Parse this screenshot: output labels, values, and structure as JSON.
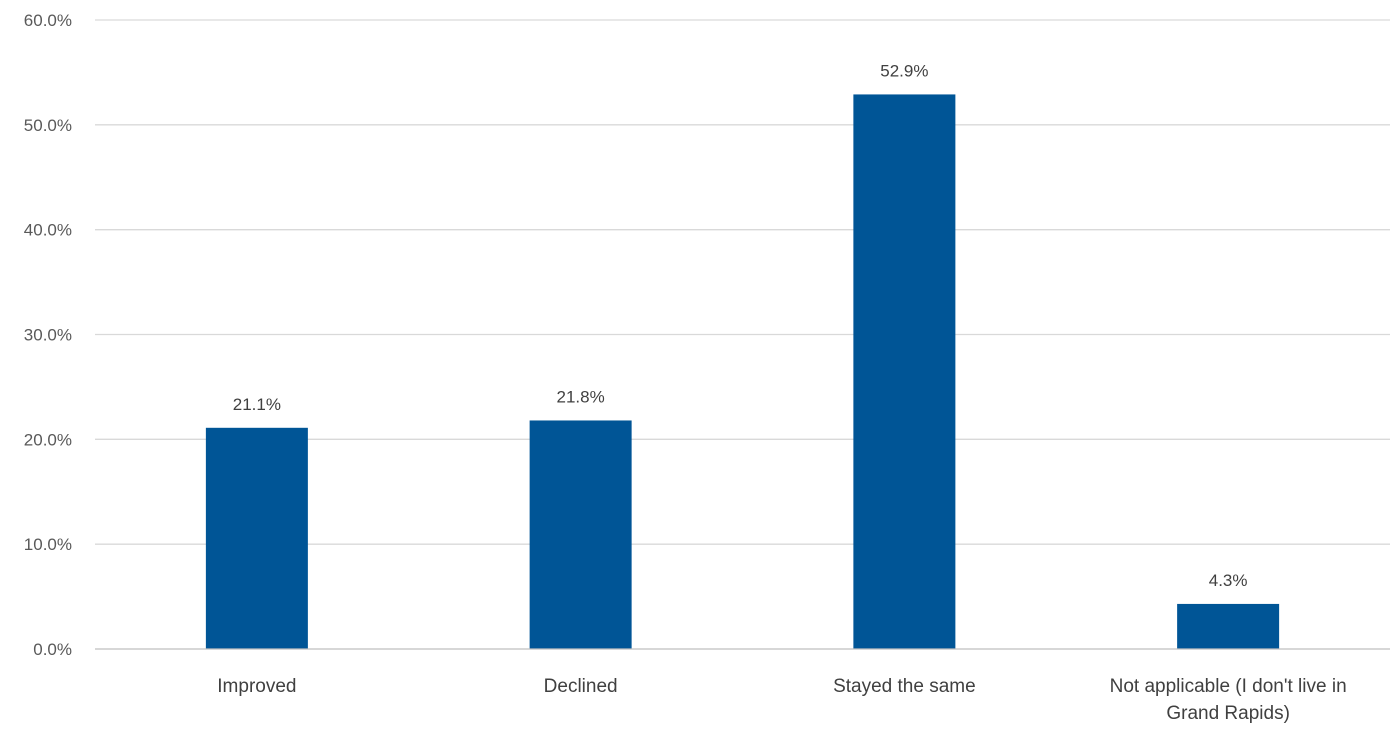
{
  "chart_data": {
    "type": "bar",
    "title": "",
    "xlabel": "",
    "ylabel": "",
    "categories": [
      [
        "Improved"
      ],
      [
        "Declined"
      ],
      [
        "Stayed the same"
      ],
      [
        "Not applicable (I don't live in",
        "Grand Rapids)"
      ]
    ],
    "values": [
      21.1,
      21.8,
      52.9,
      4.3
    ],
    "data_labels": [
      "21.1%",
      "21.8%",
      "52.9%",
      "4.3%"
    ],
    "ylim": [
      0,
      60
    ],
    "yticks": [
      0,
      10,
      20,
      30,
      40,
      50,
      60
    ],
    "ytick_labels": [
      "0.0%",
      "10.0%",
      "20.0%",
      "30.0%",
      "40.0%",
      "50.0%",
      "60.0%"
    ],
    "grid": true,
    "legend": "none",
    "bar_color": "#005596"
  }
}
